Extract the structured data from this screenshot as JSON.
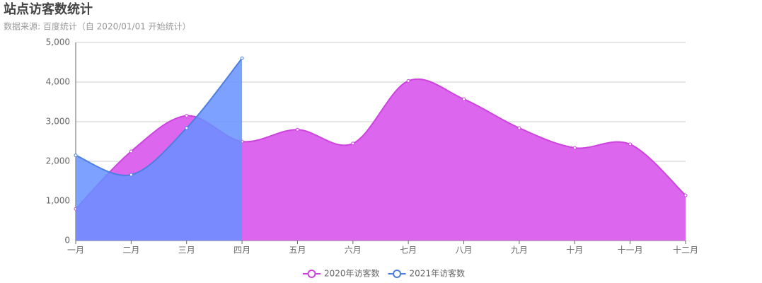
{
  "chart_data": {
    "type": "area",
    "title": "站点访客数统计",
    "subtitle": "数据来源: 百度统计（自 2020/01/01 开始统计）",
    "categories": [
      "一月",
      "二月",
      "三月",
      "四月",
      "五月",
      "六月",
      "七月",
      "八月",
      "九月",
      "十月",
      "十一月",
      "十二月"
    ],
    "series": [
      {
        "name": "2020年访客数",
        "color": "#cc44dd",
        "fill": "#dd66ee",
        "values": [
          800,
          2250,
          3150,
          2500,
          2800,
          2450,
          4030,
          3570,
          2840,
          2340,
          2430,
          1140
        ]
      },
      {
        "name": "2021年访客数",
        "color": "#4d7fe0",
        "fill": "#6690ff",
        "values": [
          2150,
          1660,
          2840,
          4600,
          null,
          null,
          null,
          null,
          null,
          null,
          null,
          null
        ]
      }
    ],
    "ylim": [
      0,
      5000
    ],
    "yticks": [
      0,
      {
        "value": 1000,
        "label": "1,000"
      },
      {
        "value": 2000,
        "label": "2,000"
      },
      {
        "value": 3000,
        "label": "3,000"
      },
      {
        "value": 4000,
        "label": "4,000"
      },
      {
        "value": 5000,
        "label": "5,000"
      }
    ],
    "grid": true,
    "smooth": true,
    "legend": "bottom"
  }
}
